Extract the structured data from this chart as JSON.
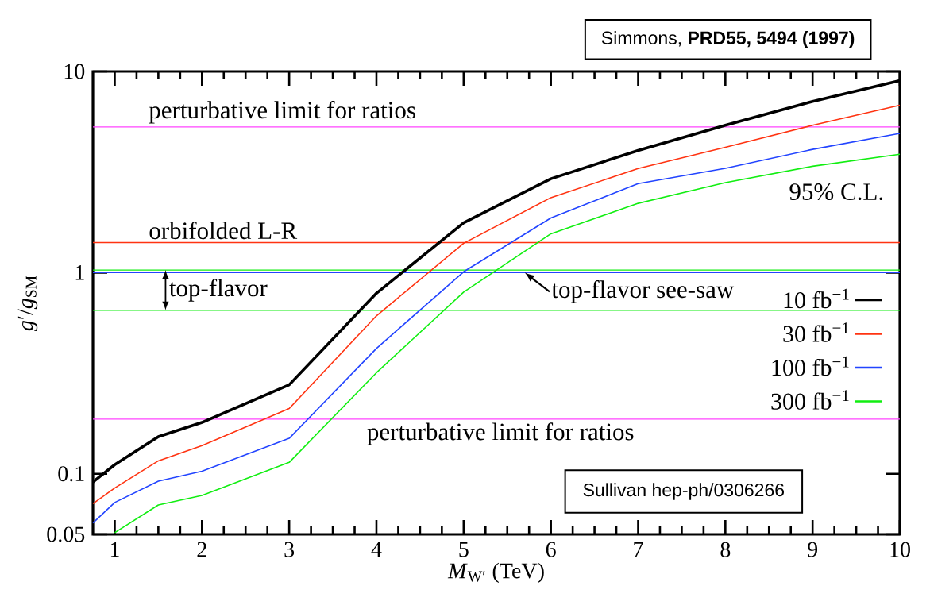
{
  "chart_data": {
    "type": "line",
    "xlabel": "*M*$_{W′}$ (TeV)",
    "ylabel": "*g*′/*g*$_{SM}$",
    "x": [
      0.75,
      1,
      1.5,
      2,
      3,
      4,
      5,
      6,
      7,
      8,
      9,
      10
    ],
    "series": [
      {
        "name": "10 fb$^{−1}$",
        "color": "#000000",
        "values": [
          0.091,
          0.111,
          0.153,
          0.18,
          0.277,
          0.79,
          1.77,
          2.93,
          4.05,
          5.4,
          7.1,
          9.0
        ]
      },
      {
        "name": "30 fb$^{−1}$",
        "color": "#ff3311",
        "values": [
          0.071,
          0.085,
          0.116,
          0.138,
          0.211,
          0.61,
          1.4,
          2.36,
          3.29,
          4.2,
          5.4,
          6.8
        ]
      },
      {
        "name": "100 fb$^{−1}$",
        "color": "#2244ff",
        "values": [
          0.057,
          0.072,
          0.092,
          0.103,
          0.15,
          0.42,
          1.01,
          1.87,
          2.77,
          3.3,
          4.1,
          4.92
        ]
      },
      {
        "name": "300 fb$^{−1}$",
        "color": "#11ee11",
        "x": [
          1,
          1.5,
          2,
          3,
          4,
          5,
          6,
          7,
          8,
          9,
          10
        ],
        "values": [
          0.051,
          0.07,
          0.078,
          0.114,
          0.318,
          0.8,
          1.56,
          2.21,
          2.8,
          3.38,
          3.88
        ]
      }
    ],
    "xlim": [
      0.75,
      10
    ],
    "ylim": [
      0.05,
      10
    ],
    "xticks": [
      1,
      2,
      3,
      4,
      5,
      6,
      7,
      8,
      9,
      10
    ],
    "yticks": [
      0.05,
      0.1,
      1,
      10
    ],
    "log": "y",
    "grid": false,
    "legend": "right",
    "marker": "none",
    "line_style": "solid",
    "ref_lines": [
      {
        "axis": "y",
        "value": 5.3,
        "label": "perturbative limit for ratios",
        "color": "#ff44ff"
      },
      {
        "axis": "y",
        "value": 1.41,
        "label": "orbifolded L-R",
        "color": "#ff3311"
      },
      {
        "axis": "y",
        "value": 1.03,
        "label": null,
        "color": "#11ee11"
      },
      {
        "axis": "y",
        "value": 1.0,
        "label": null,
        "color": "#2244ff"
      },
      {
        "axis": "y",
        "value": 0.65,
        "label": null,
        "color": "#11ee11"
      },
      {
        "axis": "y",
        "value": 0.187,
        "label": "perturbative limit for ratios",
        "color": "#ff44ff"
      }
    ],
    "annotations": [
      "top-flavor",
      {
        "text": "top-flavor see-saw",
        "x": 5.7,
        "y": 1.0
      },
      "95% C.L.",
      "Simmons, **PRD55, 5494 (1997)**",
      "Sullivan hep-ph/0306266"
    ]
  }
}
